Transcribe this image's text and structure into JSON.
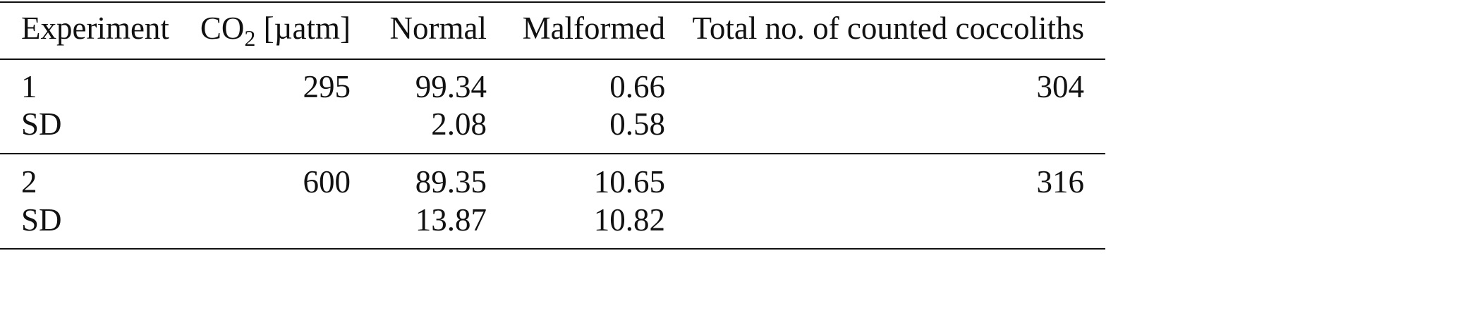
{
  "header": {
    "columns": [
      "Experiment",
      [
        "CO",
        "2",
        " [µatm]"
      ],
      "Normal",
      "Malformed",
      "Total no. of counted coccoliths"
    ]
  },
  "table": {
    "rows": [
      [
        "1",
        "295",
        "99.34",
        "0.66",
        "304"
      ],
      [
        "SD",
        null,
        "2.08",
        "0.58",
        null
      ],
      [
        "2",
        "600",
        "89.35",
        "10.65",
        "316"
      ],
      [
        "SD",
        null,
        "13.87",
        "10.82",
        null
      ]
    ]
  }
}
